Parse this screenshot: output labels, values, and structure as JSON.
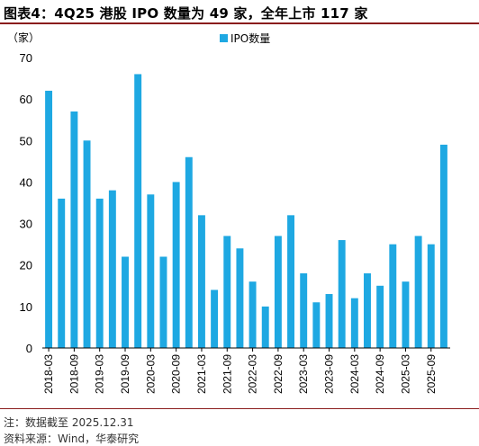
{
  "title": "图表4：4Q25 港股 IPO 数量为 49 家，全年上市 117 家",
  "notes": {
    "note": "注：数据截至 2025.12.31",
    "source": "资料来源：Wind，华泰研究"
  },
  "colors": {
    "bar": "#1ea8e2",
    "title_rule": "#8a1c1c",
    "axis": "#000000"
  },
  "chart_data": {
    "type": "bar",
    "ylabel": "（家）",
    "ylim": [
      0,
      70
    ],
    "yticks": [
      0,
      10,
      20,
      30,
      40,
      50,
      60,
      70
    ],
    "legend": {
      "entries": [
        "IPO数量"
      ],
      "position": "top-right"
    },
    "grid": false,
    "x_tick_labels": [
      "2018-03",
      "2018-09",
      "2019-03",
      "2019-09",
      "2020-03",
      "2020-09",
      "2021-03",
      "2021-09",
      "2022-03",
      "2022-09",
      "2023-03",
      "2023-09",
      "2024-03",
      "2024-09",
      "2025-03",
      "2025-09"
    ],
    "categories": [
      "2018-03",
      "2018-06",
      "2018-09",
      "2018-12",
      "2019-03",
      "2019-06",
      "2019-09",
      "2019-12",
      "2020-03",
      "2020-06",
      "2020-09",
      "2020-12",
      "2021-03",
      "2021-06",
      "2021-09",
      "2021-12",
      "2022-03",
      "2022-06",
      "2022-09",
      "2022-12",
      "2023-03",
      "2023-06",
      "2023-09",
      "2023-12",
      "2024-03",
      "2024-06",
      "2024-09",
      "2024-12",
      "2025-03",
      "2025-06",
      "2025-09",
      "2025-12"
    ],
    "series": [
      {
        "name": "IPO数量",
        "values": [
          62,
          36,
          57,
          50,
          36,
          38,
          22,
          66,
          37,
          22,
          40,
          46,
          32,
          14,
          27,
          24,
          16,
          10,
          27,
          32,
          18,
          11,
          13,
          26,
          12,
          18,
          15,
          25,
          16,
          27,
          25,
          49
        ]
      }
    ]
  }
}
